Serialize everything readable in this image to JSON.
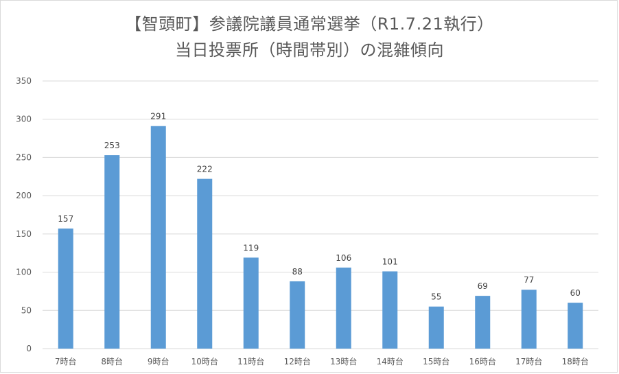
{
  "chart_data": {
    "type": "bar",
    "title": "【智頭町】参議院議員通常選挙（R1.7.21執行）",
    "subtitle": "当日投票所（時間帯別）の混雑傾向",
    "xlabel": "",
    "ylabel": "",
    "categories": [
      "7時台",
      "8時台",
      "9時台",
      "10時台",
      "11時台",
      "12時台",
      "13時台",
      "14時台",
      "15時台",
      "16時台",
      "17時台",
      "18時台"
    ],
    "values": [
      157,
      253,
      291,
      222,
      119,
      88,
      106,
      101,
      55,
      69,
      77,
      60
    ],
    "ylim": [
      0,
      350
    ],
    "yticks": [
      0,
      50,
      100,
      150,
      200,
      250,
      300,
      350
    ],
    "grid": true,
    "legend": "none",
    "data_labels": true,
    "colors": {
      "bar": "#5b9bd5",
      "grid": "#d9d9d9",
      "text": "#595959"
    }
  }
}
